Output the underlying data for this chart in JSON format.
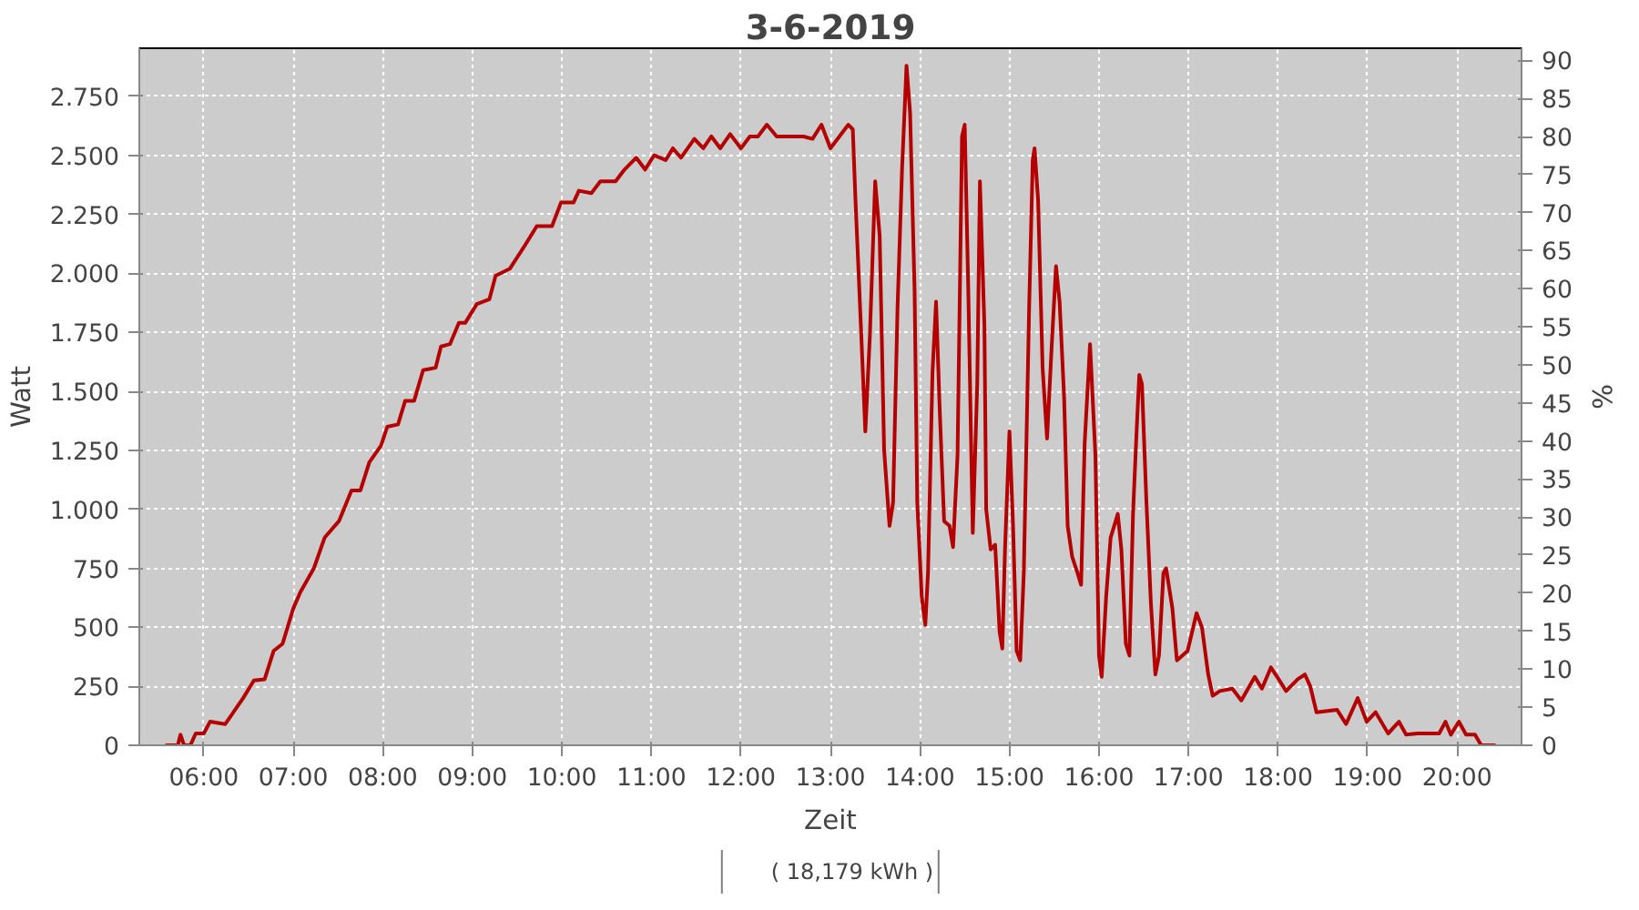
{
  "chart_data": {
    "type": "line",
    "title": "3-6-2019",
    "xlabel": "Zeit",
    "ylabel": "Watt",
    "y2label": "%",
    "x": [
      5.57,
      5.71,
      5.74,
      5.78,
      5.85,
      5.91,
      6.0,
      6.07,
      6.24,
      6.44,
      6.56,
      6.68,
      6.78,
      6.88,
      7.0,
      7.08,
      7.23,
      7.35,
      7.51,
      7.65,
      7.75,
      7.85,
      7.98,
      8.05,
      8.17,
      8.25,
      8.35,
      8.45,
      8.59,
      8.65,
      8.75,
      8.85,
      8.92,
      9.05,
      9.19,
      9.26,
      9.42,
      9.59,
      9.72,
      9.89,
      9.99,
      10.13,
      10.19,
      10.33,
      10.43,
      10.6,
      10.7,
      10.83,
      10.93,
      11.03,
      11.16,
      11.24,
      11.33,
      11.48,
      11.58,
      11.67,
      11.77,
      11.88,
      12.0,
      12.1,
      12.19,
      12.29,
      12.4,
      12.7,
      12.8,
      12.9,
      13.0,
      13.1,
      13.2,
      13.25,
      13.28,
      13.34,
      13.39,
      13.44,
      13.5,
      13.55,
      13.6,
      13.66,
      13.7,
      13.75,
      13.8,
      13.85,
      13.89,
      13.94,
      13.97,
      14.02,
      14.06,
      14.09,
      14.14,
      14.18,
      14.22,
      14.27,
      14.33,
      14.37,
      14.42,
      14.47,
      14.5,
      14.54,
      14.59,
      14.64,
      14.67,
      14.72,
      14.74,
      14.79,
      14.84,
      14.89,
      14.92,
      14.95,
      15.0,
      15.04,
      15.08,
      15.12,
      15.16,
      15.22,
      15.26,
      15.28,
      15.32,
      15.37,
      15.42,
      15.47,
      15.52,
      15.56,
      15.61,
      15.65,
      15.7,
      15.76,
      15.8,
      15.84,
      15.9,
      15.96,
      16.0,
      16.03,
      16.08,
      16.13,
      16.21,
      16.25,
      16.3,
      16.34,
      16.38,
      16.42,
      16.45,
      16.48,
      16.53,
      16.58,
      16.63,
      16.67,
      16.72,
      16.75,
      16.82,
      16.87,
      16.99,
      17.09,
      17.15,
      17.22,
      17.27,
      17.35,
      17.49,
      17.59,
      17.74,
      17.82,
      17.92,
      17.99,
      18.09,
      18.22,
      18.3,
      18.36,
      18.43,
      18.66,
      18.76,
      18.89,
      18.99,
      19.09,
      19.23,
      19.35,
      19.43,
      19.56,
      19.8,
      19.87,
      19.93,
      20.02,
      20.1,
      20.2,
      20.27,
      20.43
    ],
    "series": [
      {
        "name": "( 18,179 kWh )",
        "color": "#b40000",
        "values": [
          0,
          0,
          45,
          0,
          0,
          50,
          50,
          100,
          90,
          200,
          275,
          280,
          400,
          430,
          580,
          650,
          750,
          880,
          950,
          1080,
          1080,
          1200,
          1270,
          1350,
          1360,
          1460,
          1460,
          1590,
          1600,
          1690,
          1700,
          1790,
          1790,
          1870,
          1890,
          1990,
          2020,
          2120,
          2200,
          2200,
          2300,
          2300,
          2350,
          2340,
          2390,
          2390,
          2440,
          2490,
          2440,
          2500,
          2480,
          2530,
          2490,
          2570,
          2530,
          2580,
          2530,
          2590,
          2530,
          2580,
          2580,
          2630,
          2580,
          2580,
          2570,
          2630,
          2530,
          2580,
          2630,
          2610,
          2310,
          1780,
          1330,
          1730,
          2390,
          2160,
          1250,
          930,
          1030,
          1860,
          2440,
          2880,
          2680,
          1930,
          1030,
          630,
          510,
          730,
          1580,
          1880,
          1430,
          950,
          930,
          840,
          1230,
          2580,
          2630,
          1930,
          900,
          1530,
          2390,
          1780,
          1000,
          830,
          850,
          480,
          410,
          830,
          1330,
          930,
          400,
          360,
          730,
          1860,
          2480,
          2530,
          2310,
          1600,
          1300,
          1680,
          2030,
          1880,
          1480,
          930,
          800,
          730,
          680,
          1280,
          1700,
          1230,
          380,
          290,
          630,
          880,
          980,
          830,
          430,
          380,
          980,
          1330,
          1570,
          1530,
          1030,
          600,
          300,
          380,
          730,
          750,
          580,
          360,
          400,
          560,
          500,
          300,
          210,
          230,
          240,
          190,
          290,
          240,
          330,
          290,
          230,
          280,
          300,
          250,
          140,
          150,
          90,
          200,
          100,
          140,
          50,
          100,
          45,
          50,
          50,
          100,
          45,
          100,
          45,
          45,
          0,
          0
        ]
      }
    ],
    "xlim": [
      5.28,
      20.72
    ],
    "xticks": [
      {
        "value": 6,
        "label": "06:00"
      },
      {
        "value": 7,
        "label": "07:00"
      },
      {
        "value": 8,
        "label": "08:00"
      },
      {
        "value": 9,
        "label": "09:00"
      },
      {
        "value": 10,
        "label": "10:00"
      },
      {
        "value": 11,
        "label": "11:00"
      },
      {
        "value": 12,
        "label": "12:00"
      },
      {
        "value": 13,
        "label": "13:00"
      },
      {
        "value": 14,
        "label": "14:00"
      },
      {
        "value": 15,
        "label": "15:00"
      },
      {
        "value": 16,
        "label": "16:00"
      },
      {
        "value": 17,
        "label": "17:00"
      },
      {
        "value": 18,
        "label": "18:00"
      },
      {
        "value": 19,
        "label": "19:00"
      },
      {
        "value": 20,
        "label": "20:00"
      }
    ],
    "ylim": [
      0,
      2954
    ],
    "yticks": [
      0,
      250,
      500,
      750,
      {
        "value": 1000,
        "label": "1.000"
      },
      {
        "value": 1250,
        "label": "1.250"
      },
      {
        "value": 1500,
        "label": "1.500"
      },
      {
        "value": 1750,
        "label": "1.750"
      },
      {
        "value": 2000,
        "label": "2.000"
      },
      {
        "value": 2250,
        "label": "2.250"
      },
      {
        "value": 2500,
        "label": "2.500"
      },
      {
        "value": 2750,
        "label": "2.750"
      }
    ],
    "y2lim": [
      0,
      91.6
    ],
    "y2ticks": [
      0,
      5,
      10,
      15,
      20,
      25,
      30,
      35,
      40,
      45,
      50,
      55,
      60,
      65,
      70,
      75,
      80,
      85,
      90
    ],
    "grid": true,
    "legend": "bottom",
    "line_style": "solid"
  }
}
